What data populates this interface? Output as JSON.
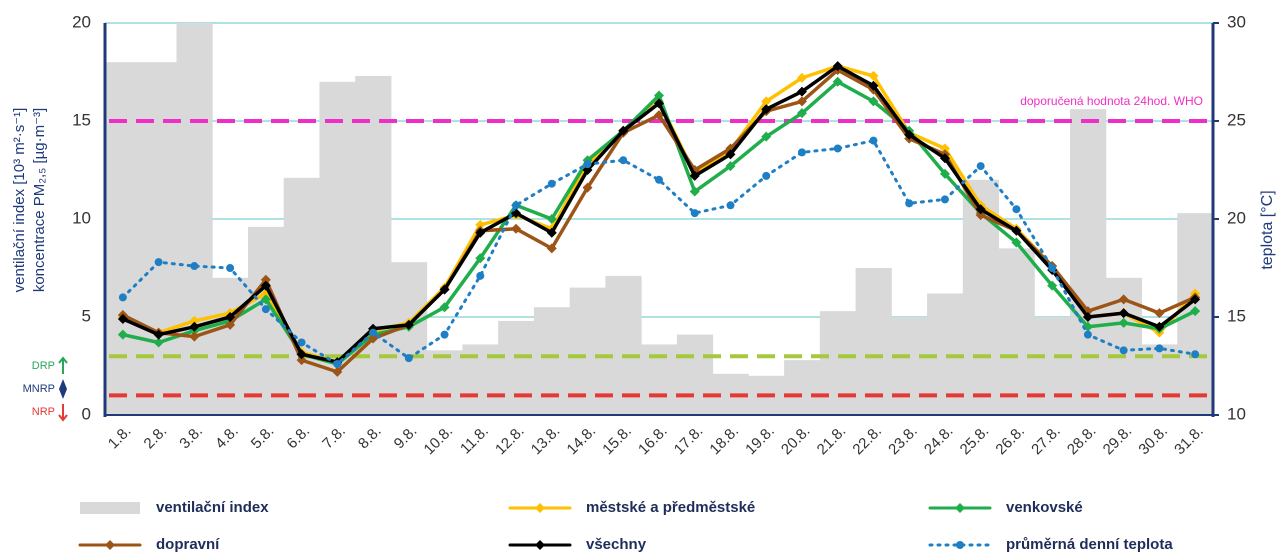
{
  "chart_data": {
    "type": "combo",
    "y_label_lines": [
      "ventilační index [10³ m²·s⁻¹]",
      "koncentrace PM₂,₅ [µg·m⁻³]"
    ],
    "y2_label": "teplota [°C]",
    "categories": [
      "1.8.",
      "2.8.",
      "3.8.",
      "4.8.",
      "5.8.",
      "6.8.",
      "7.8.",
      "8.8.",
      "9.8.",
      "10.8.",
      "11.8.",
      "12.8.",
      "13.8.",
      "14.8.",
      "15.8.",
      "16.8.",
      "17.8.",
      "18.8.",
      "19.8.",
      "20.8.",
      "21.8.",
      "22.8.",
      "23.8.",
      "24.8.",
      "25.8.",
      "26.8.",
      "27.8.",
      "28.8.",
      "29.8.",
      "30.8.",
      "31.8."
    ],
    "ylim": [
      0,
      20
    ],
    "yticks": [
      0,
      5,
      10,
      15,
      20
    ],
    "y2lim": [
      10,
      30
    ],
    "y2ticks": [
      10,
      15,
      20,
      25,
      30
    ],
    "grid": true,
    "grid_color": "#5fc4c4",
    "axis_color": "#1f3a7a",
    "series": [
      {
        "name": "ventilační index",
        "type": "bar",
        "color": "#d9d9d9",
        "values": [
          18,
          18,
          20,
          7,
          9.6,
          12.1,
          17,
          17.3,
          7.8,
          3.3,
          3.6,
          4.8,
          5.5,
          6.5,
          7.1,
          3.6,
          4.1,
          2.1,
          2.0,
          2.8,
          5.3,
          7.5,
          5.0,
          6.2,
          12.0,
          8.5,
          5.0,
          16.0,
          7.0,
          3.6,
          10.3
        ]
      },
      {
        "name": "městské a předměstské",
        "type": "line",
        "marker": "diamond",
        "color": "#ffc000",
        "values": [
          5.0,
          4.2,
          4.8,
          5.2,
          6.2,
          3.2,
          2.7,
          4.3,
          4.7,
          6.5,
          9.7,
          10.2,
          9.5,
          12.8,
          14.5,
          16.0,
          12.3,
          13.5,
          16.0,
          17.2,
          17.8,
          17.3,
          14.4,
          13.6,
          10.7,
          9.5,
          7.6,
          5.0,
          5.2,
          4.2,
          6.2
        ]
      },
      {
        "name": "venkovské",
        "type": "line",
        "marker": "diamond",
        "color": "#1fae4b",
        "values": [
          4.1,
          3.7,
          4.3,
          4.8,
          5.9,
          3.1,
          2.6,
          4.1,
          4.5,
          5.5,
          8.0,
          10.7,
          10.0,
          13.0,
          14.5,
          16.3,
          11.4,
          12.7,
          14.2,
          15.4,
          17.0,
          16.0,
          14.5,
          12.3,
          10.3,
          8.8,
          6.6,
          4.5,
          4.7,
          4.4,
          5.3
        ]
      },
      {
        "name": "dopravní",
        "type": "line",
        "marker": "diamond",
        "color": "#9c5516",
        "values": [
          5.1,
          4.2,
          4.0,
          4.6,
          6.9,
          2.8,
          2.2,
          3.9,
          4.6,
          6.4,
          9.4,
          9.5,
          8.5,
          11.6,
          14.4,
          15.3,
          12.5,
          13.6,
          15.5,
          16.0,
          17.6,
          16.6,
          14.1,
          13.3,
          10.2,
          9.4,
          7.6,
          5.3,
          5.9,
          5.2,
          6.0
        ]
      },
      {
        "name": "všechny",
        "type": "line",
        "marker": "diamond",
        "color": "#000000",
        "values": [
          4.9,
          4.1,
          4.5,
          5.0,
          6.6,
          3.1,
          2.7,
          4.4,
          4.6,
          6.4,
          9.3,
          10.3,
          9.3,
          12.5,
          14.5,
          15.9,
          12.2,
          13.3,
          15.6,
          16.5,
          17.8,
          16.8,
          14.3,
          13.1,
          10.5,
          9.4,
          7.4,
          5.0,
          5.2,
          4.5,
          5.9
        ]
      },
      {
        "name": "průměrná denní teplota",
        "type": "line",
        "style": "dotted",
        "marker": "circle",
        "color": "#1f7fc4",
        "axis": "y2",
        "values": [
          16.0,
          17.8,
          17.6,
          17.5,
          15.4,
          13.7,
          12.6,
          14.2,
          12.9,
          14.1,
          17.1,
          20.7,
          21.8,
          22.8,
          23.0,
          22.0,
          20.3,
          20.7,
          22.2,
          23.4,
          23.6,
          24.0,
          20.8,
          21.0,
          22.7,
          20.5,
          17.5,
          14.1,
          13.3,
          13.4,
          13.1
        ]
      }
    ],
    "reference_lines": [
      {
        "value": 15,
        "color": "#ee2ec6",
        "label": "doporučená hodnota 24hod. WHO"
      },
      {
        "value": 3,
        "color": "#a5c93a"
      },
      {
        "value": 1,
        "color": "#e53935"
      }
    ],
    "threshold_labels": [
      {
        "text": "DRP",
        "color": "#2aa55a",
        "arrow": "up"
      },
      {
        "text": "MNRP",
        "color": "#1f3a7a",
        "arrow": "both"
      },
      {
        "text": "NRP",
        "color": "#e53935",
        "arrow": "down"
      }
    ]
  }
}
